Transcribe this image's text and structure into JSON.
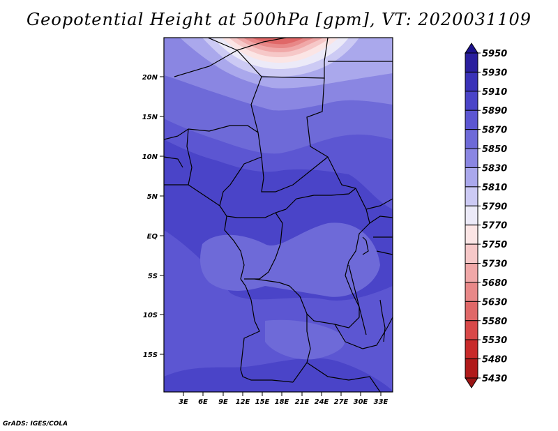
{
  "title": "Geopotential Height at 500hPa [gpm], VT: 2020031109",
  "credit": "GrADS: IGES/COLA",
  "map": {
    "lat_ticks": [
      "20N",
      "15N",
      "10N",
      "5N",
      "EQ",
      "5S",
      "10S",
      "15S"
    ],
    "lon_ticks": [
      "3E",
      "6E",
      "9E",
      "12E",
      "15E",
      "18E",
      "21E",
      "24E",
      "27E",
      "30E",
      "33E"
    ]
  },
  "colorbar": {
    "levels": [
      "5950",
      "5930",
      "5910",
      "5890",
      "5870",
      "5850",
      "5830",
      "5810",
      "5790",
      "5770",
      "5750",
      "5730",
      "5680",
      "5630",
      "5580",
      "5530",
      "5480",
      "5430"
    ],
    "colors": [
      "#1c128c",
      "#2a1f9e",
      "#3a32b8",
      "#4a44c8",
      "#5c56d2",
      "#6e6ad8",
      "#8a86e2",
      "#aaa8ec",
      "#cccaf4",
      "#eceaf8",
      "#fbe5e5",
      "#f6c8c8",
      "#f0a8a8",
      "#e88888",
      "#e06868",
      "#d84848",
      "#c82a2a",
      "#b01a1a",
      "#9a1414"
    ]
  }
}
